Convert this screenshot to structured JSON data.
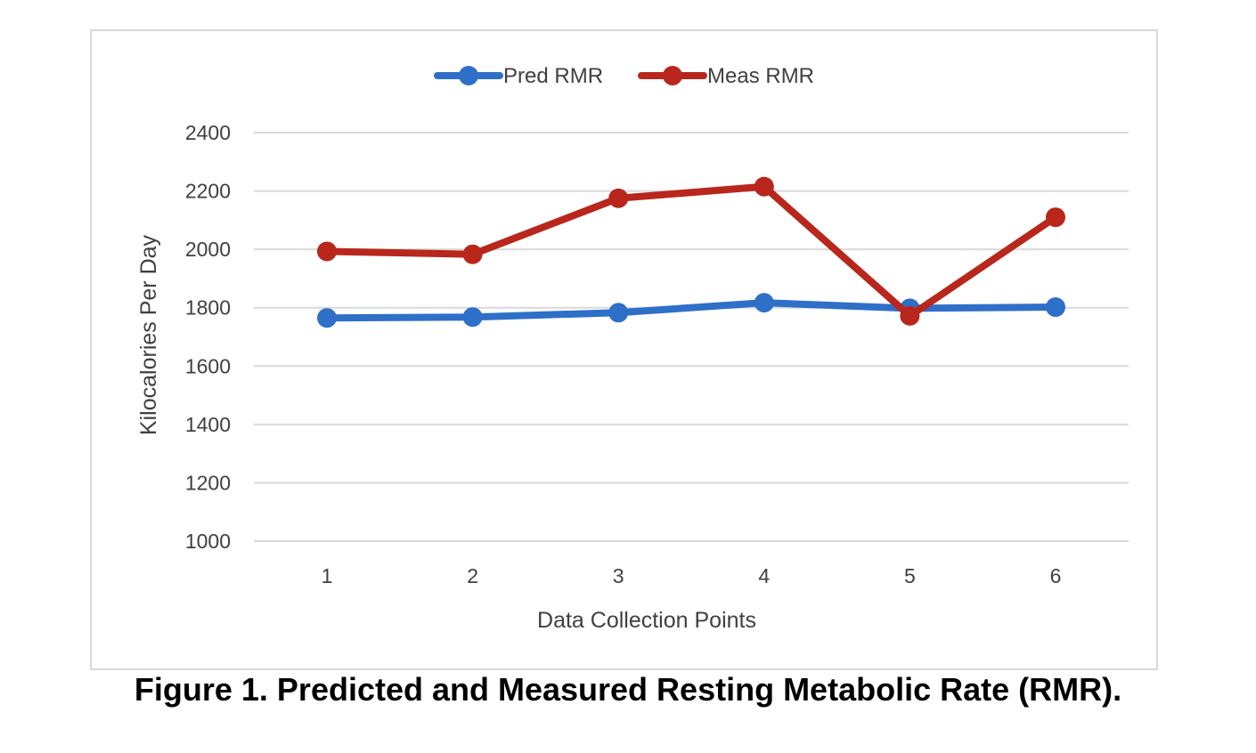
{
  "figure": {
    "caption": "Figure 1.  Predicted and Measured Resting Metabolic Rate (RMR)."
  },
  "chart_data": {
    "type": "line",
    "categories": [
      "1",
      "2",
      "3",
      "4",
      "5",
      "6"
    ],
    "series": [
      {
        "name": "Pred RMR",
        "color": "#2e6fc8",
        "values": [
          1765,
          1768,
          1783,
          1817,
          1798,
          1802
        ]
      },
      {
        "name": "Meas RMR",
        "color": "#b8261c",
        "values": [
          1993,
          1983,
          2175,
          2215,
          1772,
          2110
        ]
      }
    ],
    "title": "",
    "xlabel": "Data Collection Points",
    "ylabel": "Kilocalories Per Day",
    "ylim": [
      1000,
      2400
    ],
    "yticks": [
      "1000",
      "1200",
      "1400",
      "1600",
      "1800",
      "2000",
      "2200",
      "2400"
    ],
    "grid": true,
    "legend_position": "top-center",
    "gridline_color": "#d9d9d9"
  }
}
